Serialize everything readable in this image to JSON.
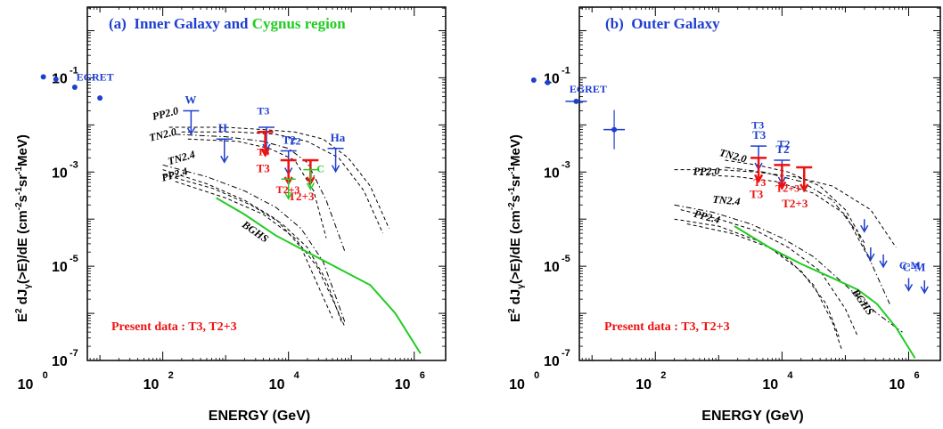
{
  "chart_data": [
    {
      "type": "line",
      "panel": "a",
      "title_parts": [
        {
          "text": "(a)  Inner Galaxy and ",
          "color": "#1f3fcf"
        },
        {
          "text": "Cygnus region",
          "color": "#22cc22"
        }
      ],
      "xlabel": "ENERGY (GeV)",
      "ylabel_parts": [
        "E",
        "2",
        " dJ",
        "γ",
        "(>E)/dE (cm",
        "-2",
        "s",
        "-1",
        "sr",
        "-1",
        "MeV)"
      ],
      "xscale": "log",
      "yscale": "log",
      "xlim": [
        0.8,
        6.5
      ],
      "ylim": [
        -7,
        0.5
      ],
      "x_ticks": [
        {
          "exp": "0"
        },
        {
          "exp": "2"
        },
        {
          "exp": "4"
        },
        {
          "exp": "6"
        }
      ],
      "y_ticks": [
        {
          "exp": "-1"
        },
        {
          "exp": "-3"
        },
        {
          "exp": "-5"
        },
        {
          "exp": "-7"
        }
      ],
      "tick_base": "10",
      "footnote": "Present data : T3, T2+3",
      "colors": {
        "egret": "#1f3fcf",
        "present": "#ee1111",
        "cygnus": "#22cc22",
        "bghs": "#22cc22",
        "axis": "#000000"
      },
      "egret": {
        "label": "EGRET",
        "points": [
          [
            0.1,
            -0.98
          ],
          [
            0.3,
            -1.03
          ],
          [
            0.6,
            -1.2
          ],
          [
            1.0,
            -1.43
          ]
        ]
      },
      "upper_limits_blue": [
        {
          "label": "W",
          "x": 2.45,
          "y": -1.7,
          "bar": true
        },
        {
          "label": "H",
          "x": 2.98,
          "y": -2.3,
          "bar": true
        },
        {
          "label": "T2",
          "x": 4.0,
          "y": -2.55,
          "bar": true
        },
        {
          "label": "Ha",
          "x": 4.75,
          "y": -2.5,
          "bar": true
        },
        {
          "label": "",
          "x": 3.65,
          "y": -2.05,
          "bar": true
        }
      ],
      "upper_limits_red": [
        {
          "label": "T3",
          "x": 3.63,
          "y": -2.15
        },
        {
          "label": "",
          "x": 4.0,
          "y": -2.75
        },
        {
          "label": "T2+3",
          "x": 4.35,
          "y": -2.75
        }
      ],
      "upper_limits_green": [
        {
          "x": 4.0,
          "y": -3.15
        },
        {
          "x": 4.35,
          "y": -2.95
        }
      ],
      "model_labels": [
        "PP2.0",
        "TN2.0",
        "TN2.4",
        "PP2.4",
        "BGHS",
        "T3",
        "T2+3",
        "T3",
        "T2",
        "C"
      ],
      "models": [
        {
          "name": "PP2.0",
          "style": "dash",
          "points": [
            [
              2.1,
              -2.05
            ],
            [
              3.0,
              -2.05
            ],
            [
              3.6,
              -2.1
            ],
            [
              4.1,
              -2.15
            ],
            [
              4.55,
              -2.3
            ],
            [
              4.95,
              -2.7
            ],
            [
              5.3,
              -3.3
            ],
            [
              5.6,
              -4.2
            ]
          ]
        },
        {
          "name": "PP2.0b",
          "style": "dash",
          "points": [
            [
              2.3,
              -2.15
            ],
            [
              3.2,
              -2.15
            ],
            [
              3.8,
              -2.2
            ],
            [
              4.3,
              -2.35
            ],
            [
              4.8,
              -2.7
            ],
            [
              5.2,
              -3.4
            ],
            [
              5.5,
              -4.3
            ]
          ]
        },
        {
          "name": "TN2.0",
          "style": "dashdot",
          "points": [
            [
              2.2,
              -2.2
            ],
            [
              3.0,
              -2.25
            ],
            [
              3.6,
              -2.35
            ],
            [
              4.0,
              -2.5
            ],
            [
              4.3,
              -2.8
            ],
            [
              4.6,
              -3.6
            ],
            [
              4.9,
              -4.7
            ]
          ]
        },
        {
          "name": "TN2.0b",
          "style": "dash",
          "points": [
            [
              2.4,
              -2.3
            ],
            [
              3.2,
              -2.35
            ],
            [
              3.7,
              -2.5
            ],
            [
              4.1,
              -2.75
            ],
            [
              4.4,
              -3.4
            ],
            [
              4.6,
              -4.4
            ]
          ]
        },
        {
          "name": "TN2.4",
          "style": "dashdot",
          "points": [
            [
              2.0,
              -2.85
            ],
            [
              2.7,
              -3.1
            ],
            [
              3.3,
              -3.4
            ],
            [
              3.8,
              -3.75
            ],
            [
              4.2,
              -4.2
            ],
            [
              4.55,
              -4.9
            ],
            [
              4.9,
              -6.2
            ]
          ]
        },
        {
          "name": "TN2.4b",
          "style": "dash",
          "points": [
            [
              2.0,
              -2.95
            ],
            [
              2.7,
              -3.25
            ],
            [
              3.3,
              -3.6
            ],
            [
              3.8,
              -4.0
            ],
            [
              4.2,
              -4.6
            ],
            [
              4.5,
              -5.5
            ],
            [
              4.7,
              -6.1
            ]
          ]
        },
        {
          "name": "PP2.4",
          "style": "dash",
          "points": [
            [
              2.0,
              -3.05
            ],
            [
              2.8,
              -3.35
            ],
            [
              3.4,
              -3.7
            ],
            [
              3.9,
              -4.1
            ],
            [
              4.3,
              -4.6
            ],
            [
              4.6,
              -5.3
            ],
            [
              4.85,
              -6.2
            ]
          ]
        },
        {
          "name": "PP2.4b",
          "style": "dash",
          "points": [
            [
              2.2,
              -3.2
            ],
            [
              3.0,
              -3.55
            ],
            [
              3.6,
              -3.9
            ],
            [
              4.1,
              -4.4
            ],
            [
              4.45,
              -5.0
            ],
            [
              4.7,
              -5.7
            ],
            [
              4.9,
              -6.3
            ]
          ]
        },
        {
          "name": "BGHS",
          "style": "solid-green",
          "points": [
            [
              2.85,
              -3.55
            ],
            [
              3.3,
              -3.9
            ],
            [
              3.8,
              -4.35
            ],
            [
              4.3,
              -4.7
            ],
            [
              4.8,
              -5.05
            ],
            [
              5.3,
              -5.4
            ],
            [
              5.7,
              -6.0
            ],
            [
              6.1,
              -6.85
            ]
          ]
        }
      ]
    },
    {
      "type": "line",
      "panel": "b",
      "title_parts": [
        {
          "text": "(b)  Outer Galaxy",
          "color": "#1f3fcf"
        }
      ],
      "xlabel": "ENERGY (GeV)",
      "ylabel_parts": [
        "E",
        "2",
        " dJ",
        "γ",
        "(>E)/dE (cm",
        "-2",
        "s",
        "-1",
        "sr",
        "-1",
        "MeV)"
      ],
      "xscale": "log",
      "yscale": "log",
      "xlim": [
        0.8,
        6.5
      ],
      "ylim": [
        -7,
        0.5
      ],
      "x_ticks": [
        {
          "exp": "0"
        },
        {
          "exp": "2"
        },
        {
          "exp": "4"
        },
        {
          "exp": "6"
        }
      ],
      "y_ticks": [
        {
          "exp": "-1"
        },
        {
          "exp": "-3"
        },
        {
          "exp": "-5"
        },
        {
          "exp": "-7"
        }
      ],
      "tick_base": "10",
      "footnote": "Present data : T3, T2+3",
      "egret": {
        "label": "EGRET",
        "points": [
          [
            0.08,
            -1.05
          ],
          [
            0.3,
            -1.1
          ],
          [
            0.75,
            -1.5
          ],
          [
            1.35,
            -2.1
          ]
        ]
      },
      "upper_limits_blue": [
        {
          "label": "T3",
          "x": 3.63,
          "y": -2.45,
          "bar": true
        },
        {
          "label": "T2",
          "x": 4.0,
          "y": -2.75,
          "bar": true
        },
        {
          "label": "",
          "x": 5.3,
          "y": -4.0,
          "bar": false
        },
        {
          "label": "",
          "x": 5.4,
          "y": -4.6,
          "bar": false
        },
        {
          "label": "",
          "x": 5.6,
          "y": -4.75,
          "bar": false
        },
        {
          "label": "C-M",
          "x": 6.0,
          "y": -5.25,
          "bar": false
        },
        {
          "label": "",
          "x": 6.25,
          "y": -5.3,
          "bar": false
        }
      ],
      "upper_limits_red": [
        {
          "label": "T3",
          "x": 3.63,
          "y": -2.7
        },
        {
          "label": "",
          "x": 4.0,
          "y": -2.85
        },
        {
          "label": "T2+3",
          "x": 4.35,
          "y": -2.9
        }
      ],
      "model_labels": [
        "TN2.0",
        "PP2.0",
        "TN2.4",
        "PP2.4",
        "BGHS",
        "T3",
        "T2+3",
        "T3",
        "T2",
        "C-M"
      ],
      "models": [
        {
          "name": "TN2.0",
          "style": "dash",
          "points": [
            [
              3.1,
              -2.75
            ],
            [
              3.6,
              -2.85
            ],
            [
              4.1,
              -3.0
            ],
            [
              4.6,
              -3.3
            ],
            [
              5.0,
              -3.8
            ],
            [
              5.3,
              -4.5
            ]
          ]
        },
        {
          "name": "TN2.0b",
          "style": "dashdot",
          "points": [
            [
              3.1,
              -2.9
            ],
            [
              3.7,
              -3.0
            ],
            [
              4.3,
              -3.2
            ],
            [
              4.8,
              -3.6
            ],
            [
              5.2,
              -4.3
            ],
            [
              5.5,
              -5.2
            ],
            [
              5.7,
              -5.8
            ]
          ]
        },
        {
          "name": "PP2.0",
          "style": "dash",
          "points": [
            [
              2.3,
              -2.95
            ],
            [
              3.0,
              -2.95
            ],
            [
              3.6,
              -3.0
            ],
            [
              4.2,
              -3.1
            ],
            [
              4.8,
              -3.3
            ],
            [
              5.4,
              -3.8
            ],
            [
              5.8,
              -4.6
            ]
          ]
        },
        {
          "name": "PP2.0b",
          "style": "dash",
          "points": [
            [
              2.6,
              -3.05
            ],
            [
              3.3,
              -3.1
            ],
            [
              3.9,
              -3.2
            ],
            [
              4.5,
              -3.45
            ],
            [
              5.0,
              -3.9
            ],
            [
              5.4,
              -4.9
            ]
          ]
        },
        {
          "name": "TN2.4",
          "style": "dashdot",
          "points": [
            [
              2.3,
              -3.7
            ],
            [
              2.9,
              -3.85
            ],
            [
              3.5,
              -4.1
            ],
            [
              4.0,
              -4.4
            ],
            [
              4.5,
              -4.8
            ],
            [
              5.0,
              -5.4
            ],
            [
              5.5,
              -6.0
            ],
            [
              5.9,
              -6.4
            ]
          ]
        },
        {
          "name": "TN2.4b",
          "style": "dash",
          "points": [
            [
              2.4,
              -3.8
            ],
            [
              3.0,
              -4.0
            ],
            [
              3.6,
              -4.25
            ],
            [
              4.1,
              -4.6
            ],
            [
              4.6,
              -5.1
            ],
            [
              5.0,
              -5.9
            ],
            [
              5.2,
              -6.5
            ]
          ]
        },
        {
          "name": "PP2.4",
          "style": "dash",
          "points": [
            [
              2.3,
              -4.0
            ],
            [
              3.0,
              -4.15
            ],
            [
              3.6,
              -4.45
            ],
            [
              4.1,
              -4.85
            ],
            [
              4.5,
              -5.4
            ],
            [
              4.8,
              -6.2
            ],
            [
              4.95,
              -6.8
            ]
          ]
        },
        {
          "name": "PP2.4b",
          "style": "dash",
          "points": [
            [
              2.5,
              -4.1
            ],
            [
              3.2,
              -4.3
            ],
            [
              3.8,
              -4.6
            ],
            [
              4.3,
              -5.1
            ],
            [
              4.7,
              -5.8
            ],
            [
              4.9,
              -6.5
            ]
          ]
        },
        {
          "name": "BGHS",
          "style": "solid-green",
          "points": [
            [
              3.25,
              -4.15
            ],
            [
              3.8,
              -4.6
            ],
            [
              4.3,
              -4.95
            ],
            [
              4.8,
              -5.25
            ],
            [
              5.2,
              -5.5
            ],
            [
              5.5,
              -5.8
            ],
            [
              5.8,
              -6.3
            ],
            [
              6.1,
              -6.95
            ]
          ]
        }
      ]
    }
  ]
}
